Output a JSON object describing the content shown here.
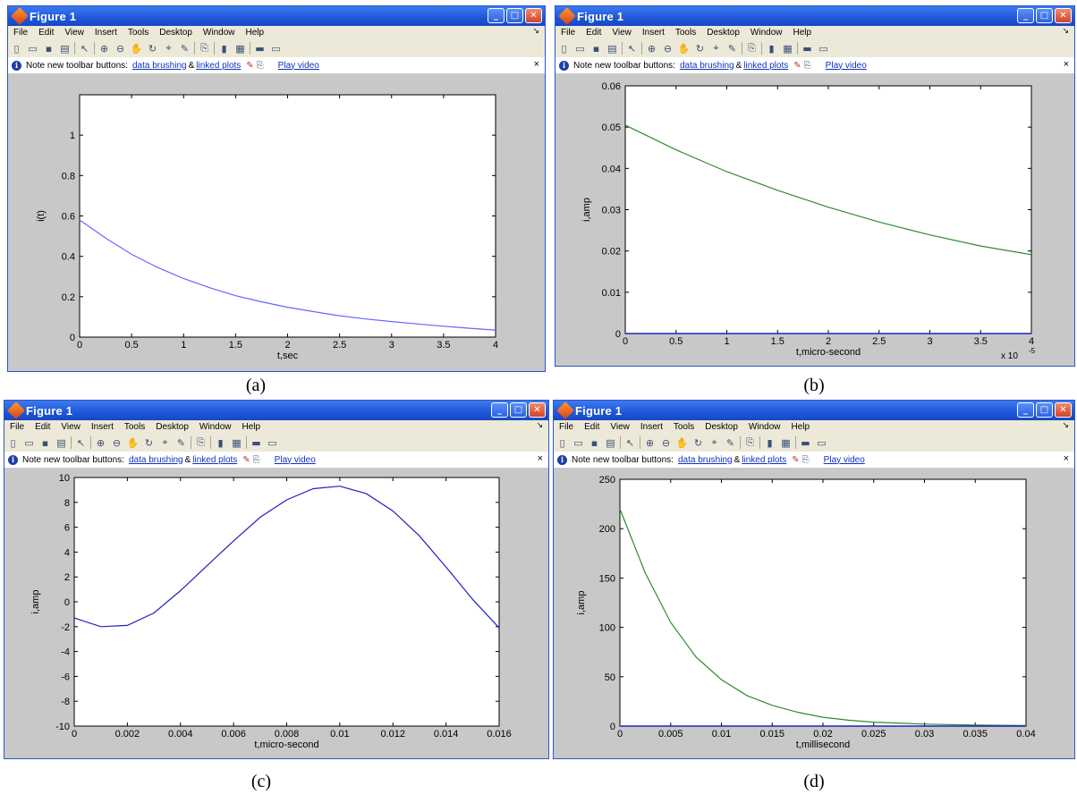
{
  "window_title": "Figure 1",
  "menu": [
    "File",
    "Edit",
    "View",
    "Insert",
    "Tools",
    "Desktop",
    "Window",
    "Help"
  ],
  "note": {
    "prefix": "Note new toolbar buttons:",
    "link1": "data brushing",
    "amp": "&",
    "link2": "linked plots",
    "video": "Play video",
    "close": "×"
  },
  "captions": [
    "(a)",
    "(b)",
    "(c)",
    "(d)"
  ],
  "colors": {
    "blue_line": "#5555ff",
    "green_line": "#2e8b2e",
    "dark_blue_line": "#2020c0"
  },
  "chart_data": [
    {
      "type": "line",
      "xlabel": "t,sec",
      "ylabel": "i(t)",
      "xlim": [
        0,
        4
      ],
      "ylim": [
        0,
        1.2
      ],
      "xticks": [
        0,
        0.5,
        1,
        1.5,
        2,
        2.5,
        3,
        3.5,
        4
      ],
      "xtick_labels": [
        "0",
        "0.5",
        "1",
        "1.5",
        "2",
        "2.5",
        "3",
        "3.5",
        "4"
      ],
      "yticks": [
        0,
        0.2,
        0.4,
        0.6,
        0.8,
        1
      ],
      "ytick_labels": [
        "0",
        "0.2",
        "0.4",
        "0.6",
        "0.8",
        "1"
      ],
      "series": [
        {
          "color": "#6666ff",
          "x": [
            0,
            0.25,
            0.5,
            0.75,
            1,
            1.25,
            1.5,
            1.75,
            2,
            2.25,
            2.5,
            2.75,
            3,
            3.25,
            3.5,
            3.75,
            4
          ],
          "y": [
            0.58,
            0.49,
            0.41,
            0.345,
            0.29,
            0.245,
            0.205,
            0.175,
            0.148,
            0.126,
            0.106,
            0.09,
            0.077,
            0.065,
            0.054,
            0.044,
            0.035
          ]
        }
      ]
    },
    {
      "type": "line",
      "xlabel": "t,micro-second",
      "ylabel": "i,amp",
      "xlim": [
        0,
        4
      ],
      "ylim": [
        0,
        0.06
      ],
      "exponent_label": "x 10",
      "exponent": "-5",
      "xticks": [
        0,
        0.5,
        1,
        1.5,
        2,
        2.5,
        3,
        3.5,
        4
      ],
      "xtick_labels": [
        "0",
        "0.5",
        "1",
        "1.5",
        "2",
        "2.5",
        "3",
        "3.5",
        "4"
      ],
      "yticks": [
        0,
        0.01,
        0.02,
        0.03,
        0.04,
        0.05,
        0.06
      ],
      "ytick_labels": [
        "0",
        "0.01",
        "0.02",
        "0.03",
        "0.04",
        "0.05",
        "0.06"
      ],
      "series": [
        {
          "color": "#2e8b2e",
          "x": [
            0,
            0.5,
            1,
            1.5,
            2,
            2.5,
            3,
            3.5,
            4
          ],
          "y": [
            0.0505,
            0.0445,
            0.0392,
            0.0347,
            0.0306,
            0.027,
            0.0239,
            0.0212,
            0.0191
          ]
        },
        {
          "color": "#2020c0",
          "x": [
            0,
            4
          ],
          "y": [
            0,
            0
          ]
        }
      ]
    },
    {
      "type": "line",
      "xlabel": "t,micro-second",
      "ylabel": "i,amp",
      "xlim": [
        0,
        0.016
      ],
      "ylim": [
        -10,
        10
      ],
      "xticks": [
        0,
        0.002,
        0.004,
        0.006,
        0.008,
        0.01,
        0.012,
        0.014,
        0.016
      ],
      "xtick_labels": [
        "0",
        "0.002",
        "0.004",
        "0.006",
        "0.008",
        "0.01",
        "0.012",
        "0.014",
        "0.016"
      ],
      "yticks": [
        -10,
        -8,
        -6,
        -4,
        -2,
        0,
        2,
        4,
        6,
        8,
        10
      ],
      "ytick_labels": [
        "-10",
        "-8",
        "-6",
        "-4",
        "-2",
        "0",
        "2",
        "4",
        "6",
        "8",
        "10"
      ],
      "series": [
        {
          "color": "#2020c0",
          "x": [
            0,
            0.001,
            0.002,
            0.003,
            0.004,
            0.005,
            0.006,
            0.007,
            0.008,
            0.009,
            0.01,
            0.011,
            0.012,
            0.013,
            0.014,
            0.015,
            0.016
          ],
          "y": [
            -1.3,
            -2.0,
            -1.9,
            -0.9,
            0.9,
            2.9,
            4.9,
            6.8,
            8.2,
            9.1,
            9.3,
            8.7,
            7.3,
            5.3,
            2.8,
            0.2,
            -2.1
          ]
        }
      ]
    },
    {
      "type": "line",
      "xlabel": "t,millisecond",
      "ylabel": "i,amp",
      "xlim": [
        0,
        0.04
      ],
      "ylim": [
        0,
        250
      ],
      "xticks": [
        0,
        0.005,
        0.01,
        0.015,
        0.02,
        0.025,
        0.03,
        0.035,
        0.04
      ],
      "xtick_labels": [
        "0",
        "0.005",
        "0.01",
        "0.015",
        "0.02",
        "0.025",
        "0.03",
        "0.035",
        "0.04"
      ],
      "yticks": [
        0,
        50,
        100,
        150,
        200,
        250
      ],
      "ytick_labels": [
        "0",
        "50",
        "100",
        "150",
        "200",
        "250"
      ],
      "series": [
        {
          "color": "#2e8b2e",
          "x": [
            0,
            0.0025,
            0.005,
            0.0075,
            0.01,
            0.0125,
            0.015,
            0.0175,
            0.02,
            0.0225,
            0.025,
            0.03,
            0.035,
            0.04
          ],
          "y": [
            220,
            155,
            105,
            70,
            47,
            31,
            21,
            14,
            9,
            6,
            4,
            2,
            1,
            0.5
          ]
        },
        {
          "color": "#2020c0",
          "x": [
            0,
            0.04
          ],
          "y": [
            0,
            0
          ]
        }
      ]
    }
  ]
}
